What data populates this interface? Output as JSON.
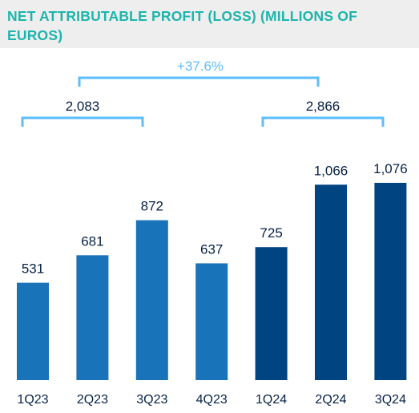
{
  "chart_data": {
    "type": "bar",
    "title": "NET ATTRIBUTABLE PROFIT (LOSS) (MILLIONS OF EUROS)",
    "categories": [
      "1Q23",
      "2Q23",
      "3Q23",
      "4Q23",
      "1Q24",
      "2Q24",
      "3Q24"
    ],
    "values": [
      531,
      681,
      872,
      637,
      725,
      1066,
      1076
    ],
    "value_labels": [
      "531",
      "681",
      "872",
      "637",
      "725",
      "1,066",
      "1,076"
    ],
    "bar_colors": [
      "#1973b8",
      "#1973b8",
      "#1973b8",
      "#1973b8",
      "#004481",
      "#004481",
      "#004481"
    ],
    "ylim": [
      0,
      1076
    ],
    "xlabel": "",
    "ylabel": "",
    "grid": false,
    "annotations": {
      "group_2023_total": "2,083",
      "group_2024_total": "2,866",
      "change": "+37.6%"
    },
    "colors": {
      "title": "#1db5ab",
      "bracket": "#5bbeff",
      "label": "#072146"
    }
  }
}
